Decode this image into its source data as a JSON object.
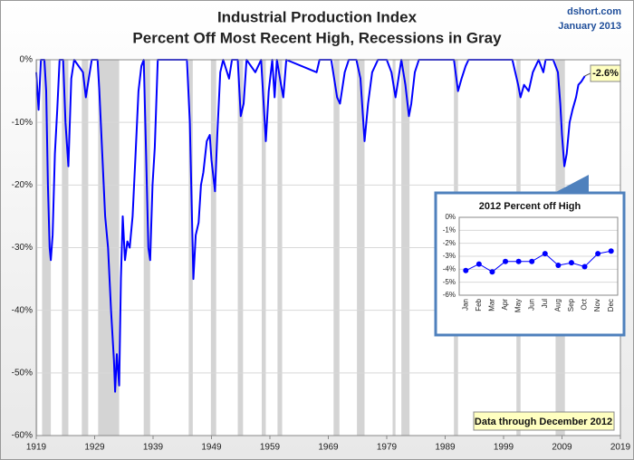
{
  "chart_data": [
    {
      "type": "line",
      "title": "Industrial Production Index",
      "subtitle": "Percent Off Most Recent High, Recessions in Gray",
      "source": "dshort.com",
      "date": "January 2013",
      "note": "Data through December 2012",
      "x": [
        1919.0,
        1919.4,
        1919.8,
        1920.4,
        1920.7,
        1921.0,
        1921.3,
        1921.5,
        1921.8,
        1922.2,
        1922.6,
        1923.0,
        1923.6,
        1924.0,
        1924.5,
        1925.0,
        1925.5,
        1927.0,
        1927.5,
        1928.0,
        1928.5,
        1929.5,
        1929.8,
        1930.3,
        1930.8,
        1931.3,
        1931.8,
        1932.3,
        1932.5,
        1932.8,
        1933.2,
        1933.5,
        1933.8,
        1934.2,
        1934.6,
        1935.0,
        1935.5,
        1936.0,
        1936.5,
        1937.0,
        1937.4,
        1937.8,
        1938.2,
        1938.5,
        1938.9,
        1939.3,
        1939.8,
        1944.8,
        1945.3,
        1945.9,
        1946.3,
        1946.8,
        1947.2,
        1947.6,
        1948.2,
        1948.7,
        1949.0,
        1949.6,
        1950.0,
        1950.5,
        1951.0,
        1952.0,
        1952.5,
        1953.5,
        1954.0,
        1954.5,
        1955.0,
        1956.5,
        1957.5,
        1958.3,
        1958.8,
        1959.4,
        1959.8,
        1960.2,
        1960.9,
        1961.3,
        1961.8,
        1967.0,
        1967.5,
        1969.5,
        1970.5,
        1971.0,
        1971.8,
        1972.5,
        1973.8,
        1974.5,
        1975.2,
        1975.8,
        1976.5,
        1977.5,
        1979.0,
        1979.8,
        1980.5,
        1981.0,
        1981.5,
        1982.2,
        1982.8,
        1983.2,
        1983.8,
        1984.5,
        1990.5,
        1991.2,
        1991.8,
        1992.5,
        1993.0,
        2000.5,
        2001.5,
        2001.9,
        2002.5,
        2003.3,
        2004.0,
        2005.0,
        2005.8,
        2006.2,
        2007.5,
        2008.3,
        2008.7,
        2009.0,
        2009.4,
        2009.8,
        2010.3,
        2010.8,
        2011.4,
        2011.8,
        2012.3,
        2012.9
      ],
      "values": [
        -2,
        -8,
        0,
        0,
        -5,
        -20,
        -30,
        -32,
        -28,
        -15,
        -8,
        0,
        0,
        -10,
        -17,
        -3,
        0,
        -2,
        -6,
        -3,
        0,
        0,
        -5,
        -15,
        -25,
        -30,
        -40,
        -48,
        -53,
        -47,
        -52,
        -35,
        -25,
        -32,
        -29,
        -30,
        -25,
        -15,
        -5,
        -1,
        0,
        -15,
        -30,
        -32,
        -20,
        -14,
        0,
        0,
        -10,
        -35,
        -28,
        -26,
        -20,
        -18,
        -13,
        -12,
        -16,
        -21,
        -12,
        -2,
        0,
        -3,
        0,
        0,
        -9,
        -7,
        0,
        -2,
        0,
        -13,
        -5,
        0,
        -6,
        0,
        -4,
        -6,
        0,
        -2,
        0,
        0,
        -6,
        -7,
        -2,
        0,
        0,
        -3,
        -13,
        -7,
        -2,
        0,
        0,
        -2,
        -6,
        -3,
        0,
        -4,
        -9,
        -7,
        -2,
        0,
        0,
        -5,
        -3,
        -1,
        0,
        0,
        -4,
        -6,
        -4,
        -5,
        -2,
        0,
        -2,
        0,
        0,
        -2,
        -7,
        -12,
        -17,
        -15,
        -10,
        -8,
        -6,
        -4,
        -3.5,
        -2.6
      ],
      "color": "#0000ff",
      "callout": {
        "value": -2.6,
        "label": "-2.6%"
      },
      "recessions": [
        [
          1919.0,
          1919.2
        ],
        [
          1920.0,
          1921.5
        ],
        [
          1923.4,
          1924.5
        ],
        [
          1926.8,
          1927.9
        ],
        [
          1929.6,
          1933.2
        ],
        [
          1937.4,
          1938.5
        ],
        [
          1945.1,
          1945.8
        ],
        [
          1948.9,
          1949.8
        ],
        [
          1953.5,
          1954.4
        ],
        [
          1957.6,
          1958.3
        ],
        [
          1960.3,
          1961.1
        ],
        [
          1969.9,
          1970.9
        ],
        [
          1973.9,
          1975.2
        ],
        [
          1980.0,
          1980.5
        ],
        [
          1981.5,
          1982.9
        ],
        [
          1990.5,
          1991.2
        ],
        [
          2001.2,
          2001.9
        ],
        [
          2007.9,
          2009.5
        ]
      ],
      "recession_color": "#d4d4d4",
      "xlim": [
        1919,
        2019
      ],
      "xticks": [
        1919,
        1929,
        1939,
        1949,
        1959,
        1969,
        1979,
        1989,
        1999,
        2009,
        2019
      ],
      "ylim": [
        -60,
        0
      ],
      "yticks": [
        {
          "value": 0,
          "label": "0%"
        },
        {
          "value": -10,
          "label": "-10%"
        },
        {
          "value": -20,
          "label": "-20%"
        },
        {
          "value": -30,
          "label": "-30%"
        },
        {
          "value": -40,
          "label": "-40%"
        },
        {
          "value": -50,
          "label": "-50%"
        },
        {
          "value": -60,
          "label": "-60%"
        }
      ],
      "grid": true
    },
    {
      "type": "line",
      "title": "2012 Percent off High",
      "categories": [
        "Jan",
        "Feb",
        "Mar",
        "Apr",
        "May",
        "Jun",
        "Jul",
        "Aug",
        "Sep",
        "Oct",
        "Nov",
        "Dec"
      ],
      "values": [
        -4.1,
        -3.6,
        -4.2,
        -3.4,
        -3.4,
        -3.4,
        -2.8,
        -3.7,
        -3.5,
        -3.8,
        -2.8,
        -2.6
      ],
      "color": "#0000ff",
      "markers": true,
      "ylim": [
        -6,
        0
      ],
      "yticks": [
        {
          "value": 0,
          "label": "0%"
        },
        {
          "value": -1,
          "label": "-1%"
        },
        {
          "value": -2,
          "label": "-2%"
        },
        {
          "value": -3,
          "label": "-3%"
        },
        {
          "value": -4,
          "label": "-4%"
        },
        {
          "value": -5,
          "label": "-5%"
        },
        {
          "value": -6,
          "label": "-6%"
        }
      ],
      "grid": true
    }
  ]
}
